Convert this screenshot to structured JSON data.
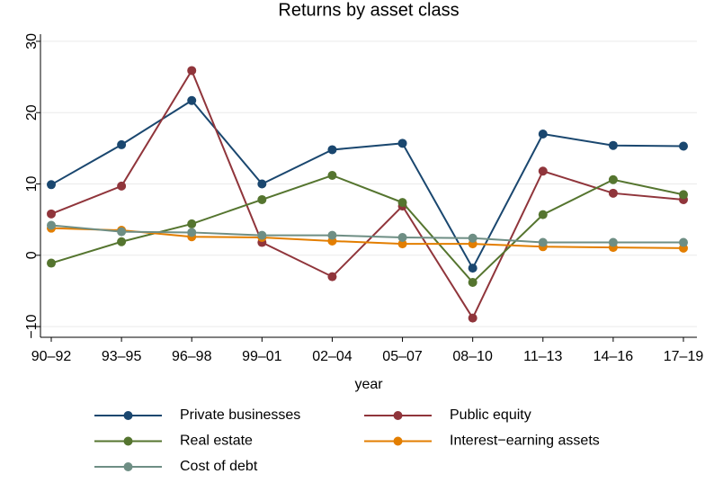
{
  "chart_data": {
    "type": "line",
    "title": "Returns by asset class",
    "x_label": "year",
    "categories": [
      "90‒92",
      "93‒95",
      "96‒98",
      "99‒01",
      "02‒04",
      "05‒07",
      "08‒10",
      "11‒13",
      "14‒16",
      "17‒19"
    ],
    "series": [
      {
        "name": "Private businesses",
        "color": "#1a476f",
        "values": [
          9.9,
          15.5,
          21.7,
          10.0,
          14.8,
          15.7,
          -1.8,
          17.0,
          15.4,
          15.3
        ]
      },
      {
        "name": "Public equity",
        "color": "#90353b",
        "values": [
          5.8,
          9.7,
          25.9,
          1.8,
          -3.0,
          6.9,
          -8.8,
          11.8,
          8.7,
          7.8
        ]
      },
      {
        "name": "Real estate",
        "color": "#55752f",
        "values": [
          -1.1,
          1.9,
          4.4,
          7.8,
          11.2,
          7.4,
          -3.8,
          5.7,
          10.6,
          8.5
        ]
      },
      {
        "name": "Interest−earning assets",
        "color": "#e37e00",
        "values": [
          3.8,
          3.5,
          2.6,
          2.5,
          2.0,
          1.6,
          1.6,
          1.2,
          1.1,
          1.0
        ]
      },
      {
        "name": "Cost of debt",
        "color": "#6e8e84",
        "values": [
          4.2,
          3.3,
          3.2,
          2.8,
          2.8,
          2.5,
          2.4,
          1.8,
          1.8,
          1.8
        ]
      }
    ],
    "ylim": [
      -11.5,
      31
    ],
    "yticks": [
      {
        "value": -10,
        "label": "−10"
      },
      0,
      10,
      20,
      30
    ],
    "grid": true
  }
}
